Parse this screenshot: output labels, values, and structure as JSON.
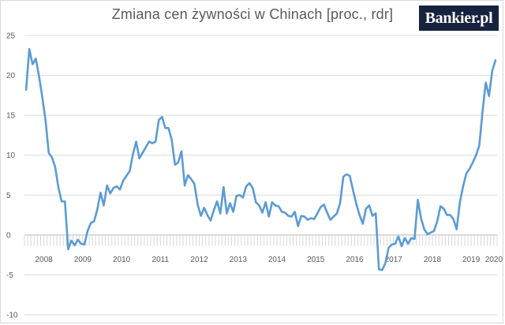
{
  "chart_title": "Zmiana cen żywności w Chinach [proc., rdr]",
  "logo_text": "Bankier.pl",
  "colors": {
    "line": "#5b9bd5",
    "grid": "#d9d9d9",
    "axis_text": "#595959",
    "logo_bg": "#16233f"
  },
  "chart_data": {
    "type": "line",
    "title": "Zmiana cen żywności w Chinach [proc., rdr]",
    "xlabel": "",
    "ylabel": "",
    "ylim": [
      -10,
      25
    ],
    "yticks": [
      25,
      20,
      15,
      10,
      5,
      0,
      -5,
      -10
    ],
    "grid": "horizontal",
    "legend": "none",
    "year_labels": [
      "2008",
      "2009",
      "2010",
      "2011",
      "2012",
      "2013",
      "2014",
      "2015",
      "2016",
      "2017",
      "2018",
      "2019",
      "2020"
    ],
    "x": [
      "2008-01",
      "2008-02",
      "2008-03",
      "2008-04",
      "2008-05",
      "2008-06",
      "2008-07",
      "2008-08",
      "2008-09",
      "2008-10",
      "2008-11",
      "2008-12",
      "2009-01",
      "2009-02",
      "2009-03",
      "2009-04",
      "2009-05",
      "2009-06",
      "2009-07",
      "2009-08",
      "2009-09",
      "2009-10",
      "2009-11",
      "2009-12",
      "2010-01",
      "2010-02",
      "2010-03",
      "2010-04",
      "2010-05",
      "2010-06",
      "2010-07",
      "2010-08",
      "2010-09",
      "2010-10",
      "2010-11",
      "2010-12",
      "2011-01",
      "2011-02",
      "2011-03",
      "2011-04",
      "2011-05",
      "2011-06",
      "2011-07",
      "2011-08",
      "2011-09",
      "2011-10",
      "2011-11",
      "2011-12",
      "2012-01",
      "2012-02",
      "2012-03",
      "2012-04",
      "2012-05",
      "2012-06",
      "2012-07",
      "2012-08",
      "2012-09",
      "2012-10",
      "2012-11",
      "2012-12",
      "2013-01",
      "2013-02",
      "2013-03",
      "2013-04",
      "2013-05",
      "2013-06",
      "2013-07",
      "2013-08",
      "2013-09",
      "2013-10",
      "2013-11",
      "2013-12",
      "2014-01",
      "2014-02",
      "2014-03",
      "2014-04",
      "2014-05",
      "2014-06",
      "2014-07",
      "2014-08",
      "2014-09",
      "2014-10",
      "2014-11",
      "2014-12",
      "2015-01",
      "2015-02",
      "2015-03",
      "2015-04",
      "2015-05",
      "2015-06",
      "2015-07",
      "2015-08",
      "2015-09",
      "2015-10",
      "2015-11",
      "2015-12",
      "2016-01",
      "2016-02",
      "2016-03",
      "2016-04",
      "2016-05",
      "2016-06",
      "2016-07",
      "2016-08",
      "2016-09",
      "2016-10",
      "2016-11",
      "2016-12",
      "2017-01",
      "2017-02",
      "2017-03",
      "2017-04",
      "2017-05",
      "2017-06",
      "2017-07",
      "2017-08",
      "2017-09",
      "2017-10",
      "2017-11",
      "2017-12",
      "2018-01",
      "2018-02",
      "2018-03",
      "2018-04",
      "2018-05",
      "2018-06",
      "2018-07",
      "2018-08",
      "2018-09",
      "2018-10",
      "2018-11",
      "2018-12",
      "2019-01",
      "2019-02",
      "2019-03",
      "2019-04",
      "2019-05",
      "2019-06",
      "2019-07",
      "2019-08",
      "2019-09",
      "2019-10",
      "2019-11",
      "2019-12",
      "2020-01",
      "2020-02"
    ],
    "series": [
      {
        "values": [
          18.2,
          23.3,
          21.4,
          22.1,
          19.9,
          17.3,
          14.4,
          10.3,
          9.7,
          8.5,
          5.9,
          4.2,
          4.2,
          -1.8,
          -0.7,
          -1.3,
          -0.6,
          -1.1,
          -1.2,
          0.5,
          1.5,
          1.7,
          3.2,
          5.3,
          3.7,
          6.2,
          5.2,
          5.9,
          6.1,
          5.7,
          6.8,
          7.4,
          8.0,
          10.1,
          11.7,
          9.6,
          10.3,
          11.0,
          11.7,
          11.5,
          11.7,
          14.4,
          14.8,
          13.4,
          13.4,
          11.9,
          8.8,
          9.1,
          10.5,
          6.2,
          7.5,
          7.0,
          6.4,
          3.8,
          2.4,
          3.4,
          2.5,
          1.8,
          3.1,
          4.2,
          2.7,
          6.0,
          2.7,
          4.0,
          2.9,
          4.9,
          5.0,
          4.7,
          6.1,
          6.5,
          5.9,
          4.1,
          3.7,
          2.8,
          4.1,
          2.3,
          4.1,
          3.7,
          3.6,
          2.9,
          2.8,
          2.4,
          2.3,
          2.9,
          1.1,
          2.4,
          2.3,
          1.9,
          2.1,
          2.0,
          2.7,
          3.5,
          3.8,
          2.8,
          1.9,
          2.3,
          2.7,
          4.0,
          7.3,
          7.6,
          7.4,
          5.6,
          3.9,
          2.5,
          1.4,
          3.3,
          3.7,
          2.4,
          2.7,
          -4.3,
          -4.4,
          -3.5,
          -1.6,
          -1.2,
          -1.1,
          -0.2,
          -1.4,
          -0.4,
          -1.1,
          -0.4,
          -0.5,
          4.4,
          2.1,
          0.7,
          0.1,
          0.3,
          0.5,
          1.7,
          3.6,
          3.3,
          2.5,
          2.5,
          2.0,
          0.7,
          4.1,
          6.1,
          7.7,
          8.3,
          9.1,
          10.0,
          11.2,
          15.5,
          19.1,
          17.4,
          20.6,
          21.9
        ]
      }
    ]
  }
}
